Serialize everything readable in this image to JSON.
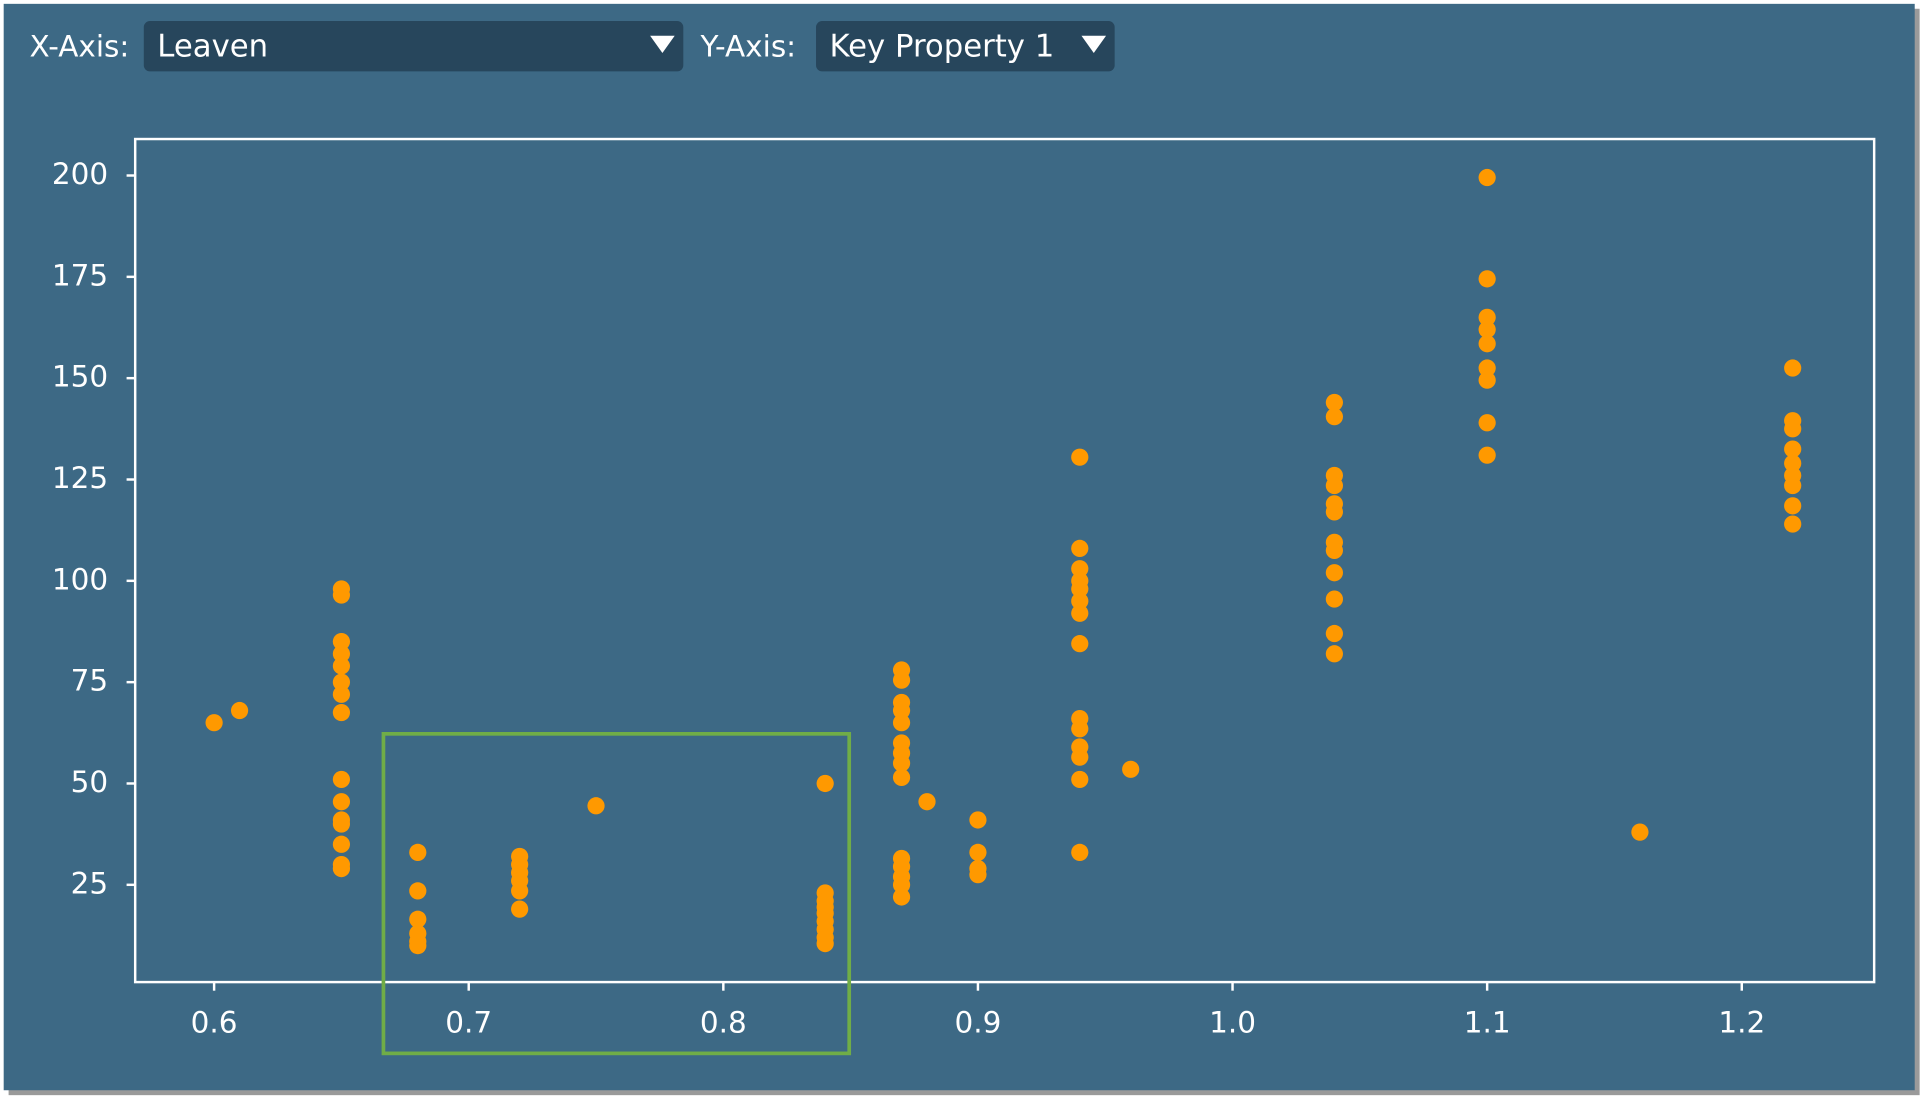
{
  "controls": {
    "x_label": "X-Axis:",
    "x_value": "Leaven",
    "y_label": "Y-Axis:",
    "y_value": "Key Property 1"
  },
  "chart_data": {
    "type": "scatter",
    "color": "#ff9900",
    "x": [
      0.6,
      0.61,
      0.65,
      0.65,
      0.65,
      0.65,
      0.65,
      0.65,
      0.65,
      0.65,
      0.65,
      0.65,
      0.65,
      0.65,
      0.65,
      0.65,
      0.65,
      0.68,
      0.68,
      0.68,
      0.68,
      0.68,
      0.68,
      0.72,
      0.72,
      0.72,
      0.72,
      0.72,
      0.72,
      0.75,
      0.84,
      0.84,
      0.84,
      0.84,
      0.84,
      0.84,
      0.84,
      0.84,
      0.84,
      0.87,
      0.87,
      0.87,
      0.87,
      0.87,
      0.87,
      0.87,
      0.87,
      0.87,
      0.87,
      0.87,
      0.87,
      0.87,
      0.87,
      0.88,
      0.9,
      0.9,
      0.9,
      0.9,
      0.94,
      0.94,
      0.94,
      0.94,
      0.94,
      0.94,
      0.94,
      0.94,
      0.94,
      0.94,
      0.94,
      0.94,
      0.94,
      0.94,
      0.96,
      1.04,
      1.04,
      1.04,
      1.04,
      1.04,
      1.04,
      1.04,
      1.04,
      1.04,
      1.04,
      1.04,
      1.04,
      1.1,
      1.1,
      1.1,
      1.1,
      1.1,
      1.1,
      1.1,
      1.1,
      1.1,
      1.16,
      1.22,
      1.22,
      1.22,
      1.22,
      1.22,
      1.22,
      1.22,
      1.22,
      1.22
    ],
    "y": [
      65,
      68,
      98,
      96.5,
      85,
      82,
      79,
      75,
      72,
      67.5,
      51,
      45.5,
      41,
      40,
      35,
      30,
      29,
      33,
      23.5,
      16.5,
      13,
      11,
      10,
      32,
      30,
      28,
      26,
      23.5,
      19,
      44.5,
      50,
      23,
      21,
      19.5,
      18,
      16,
      14,
      12,
      10.5,
      78,
      75.5,
      70,
      68,
      65,
      60,
      57.5,
      55,
      51.5,
      31.5,
      29.5,
      27,
      25,
      22,
      45.5,
      41,
      33,
      29,
      27.5,
      130.5,
      108,
      103,
      100,
      98,
      95,
      92,
      84.5,
      66,
      63.5,
      59,
      56.5,
      51,
      33,
      53.5,
      144,
      140.5,
      126,
      123.5,
      119,
      117,
      109.5,
      107.5,
      102,
      95.5,
      87,
      82,
      199.5,
      174.5,
      165,
      162,
      158.5,
      152.5,
      149.5,
      139,
      131,
      38,
      152.5,
      139.5,
      137.5,
      132.5,
      129,
      126,
      123.5,
      118.5,
      114
    ],
    "xlim": [
      0.569,
      1.252
    ],
    "ylim": [
      1,
      209
    ],
    "xticks": [
      0.6,
      0.7,
      0.8,
      0.9,
      {
        "value": 1,
        "label": "1.0"
      },
      1.1,
      1.2
    ],
    "yticks": [
      25,
      50,
      75,
      100,
      125,
      150,
      175,
      200
    ]
  }
}
